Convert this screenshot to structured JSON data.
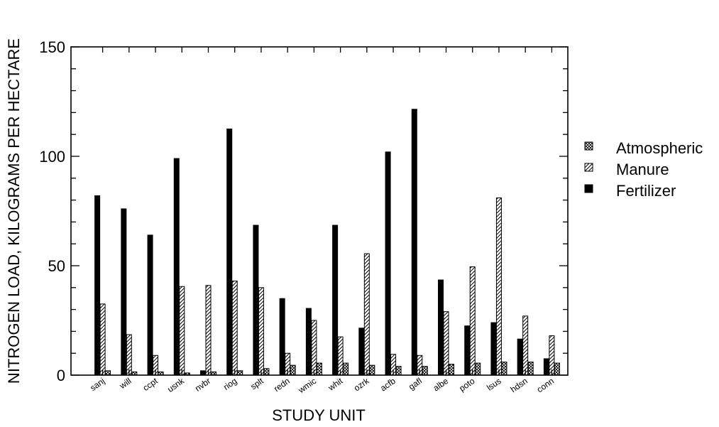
{
  "chart_data": {
    "type": "bar",
    "title": "",
    "xlabel": "STUDY UNIT",
    "ylabel": "NITROGEN LOAD, KILOGRAMS PER HECTARE",
    "ylim": [
      0,
      150
    ],
    "yticks": [
      "0",
      "50",
      "100",
      "150"
    ],
    "grid": false,
    "legend_position": "right",
    "categories": [
      "sanj",
      "will",
      "ccpt",
      "usnk",
      "nvbr",
      "riog",
      "splt",
      "redn",
      "wmic",
      "whit",
      "ozrk",
      "acfb",
      "gafl",
      "albe",
      "poto",
      "lsus",
      "hdsn",
      "conn"
    ],
    "series": [
      {
        "name": "Fertilizer",
        "pattern": "solid",
        "color": "#000000",
        "values": [
          82,
          76,
          64,
          99,
          2,
          112.5,
          68.5,
          35,
          30.5,
          68.5,
          21.5,
          102,
          121.5,
          43.5,
          22.5,
          24,
          16.5,
          7.5
        ]
      },
      {
        "name": "Manure",
        "pattern": "diagonal-hatch",
        "color": "#000000",
        "values": [
          32.5,
          18.5,
          9,
          40.5,
          41,
          43,
          40,
          10,
          25,
          17.5,
          55.5,
          9.5,
          9,
          29,
          49.5,
          81,
          27,
          18
        ]
      },
      {
        "name": "Atmospheric",
        "pattern": "cross-hatch",
        "color": "#000000",
        "values": [
          2,
          1.5,
          1.5,
          1,
          1.5,
          2,
          3,
          4.5,
          5.5,
          5.5,
          4.5,
          4,
          4,
          5,
          5.5,
          6,
          6,
          5.5
        ]
      }
    ]
  }
}
